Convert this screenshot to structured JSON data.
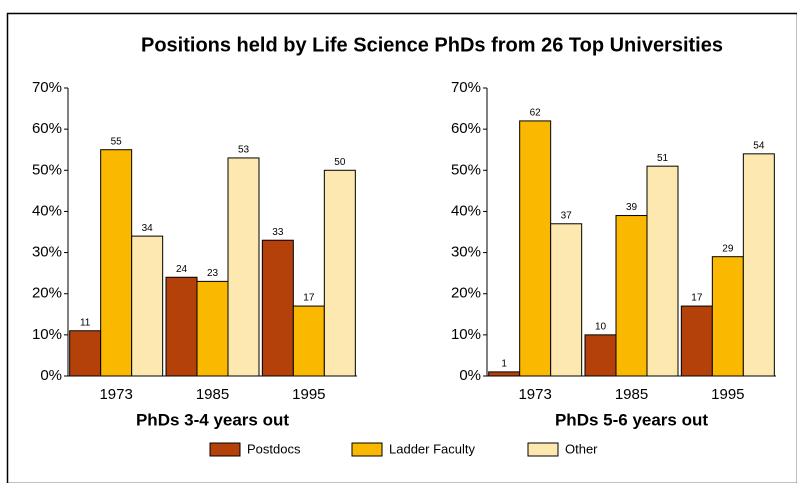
{
  "title": "Positions held by Life Science PhDs from 26 Top Universities",
  "chart_data": [
    {
      "type": "bar",
      "xlabel": "PhDs 3-4 years out",
      "categories": [
        "1973",
        "1985",
        "1995"
      ],
      "series": [
        {
          "name": "Postdocs",
          "color": "#b5410a",
          "values": [
            11,
            24,
            33
          ]
        },
        {
          "name": "Ladder Faculty",
          "color": "#fbb800",
          "values": [
            55,
            23,
            17
          ]
        },
        {
          "name": "Other",
          "color": "#fde9b0",
          "values": [
            34,
            53,
            50
          ]
        }
      ],
      "ylim": [
        0,
        70
      ],
      "yticks": [
        {
          "value": 0,
          "label": "0%"
        },
        {
          "value": 10,
          "label": "10%"
        },
        {
          "value": 20,
          "label": "20%"
        },
        {
          "value": 30,
          "label": "30%"
        },
        {
          "value": 40,
          "label": "40%"
        },
        {
          "value": 50,
          "label": "50%"
        },
        {
          "value": 60,
          "label": "60%"
        },
        {
          "value": 70,
          "label": "70%"
        }
      ]
    },
    {
      "type": "bar",
      "xlabel": "PhDs 5-6 years out",
      "categories": [
        "1973",
        "1985",
        "1995"
      ],
      "series": [
        {
          "name": "Postdocs",
          "color": "#b5410a",
          "values": [
            1,
            10,
            17
          ]
        },
        {
          "name": "Ladder Faculty",
          "color": "#fbb800",
          "values": [
            62,
            39,
            29
          ]
        },
        {
          "name": "Other",
          "color": "#fde9b0",
          "values": [
            37,
            51,
            54
          ]
        }
      ],
      "ylim": [
        0,
        70
      ],
      "yticks": [
        {
          "value": 0,
          "label": "0%"
        },
        {
          "value": 10,
          "label": "10%"
        },
        {
          "value": 20,
          "label": "20%"
        },
        {
          "value": 30,
          "label": "30%"
        },
        {
          "value": 40,
          "label": "40%"
        },
        {
          "value": 50,
          "label": "50%"
        },
        {
          "value": 60,
          "label": "60%"
        },
        {
          "value": 70,
          "label": "70%"
        }
      ]
    }
  ]
}
